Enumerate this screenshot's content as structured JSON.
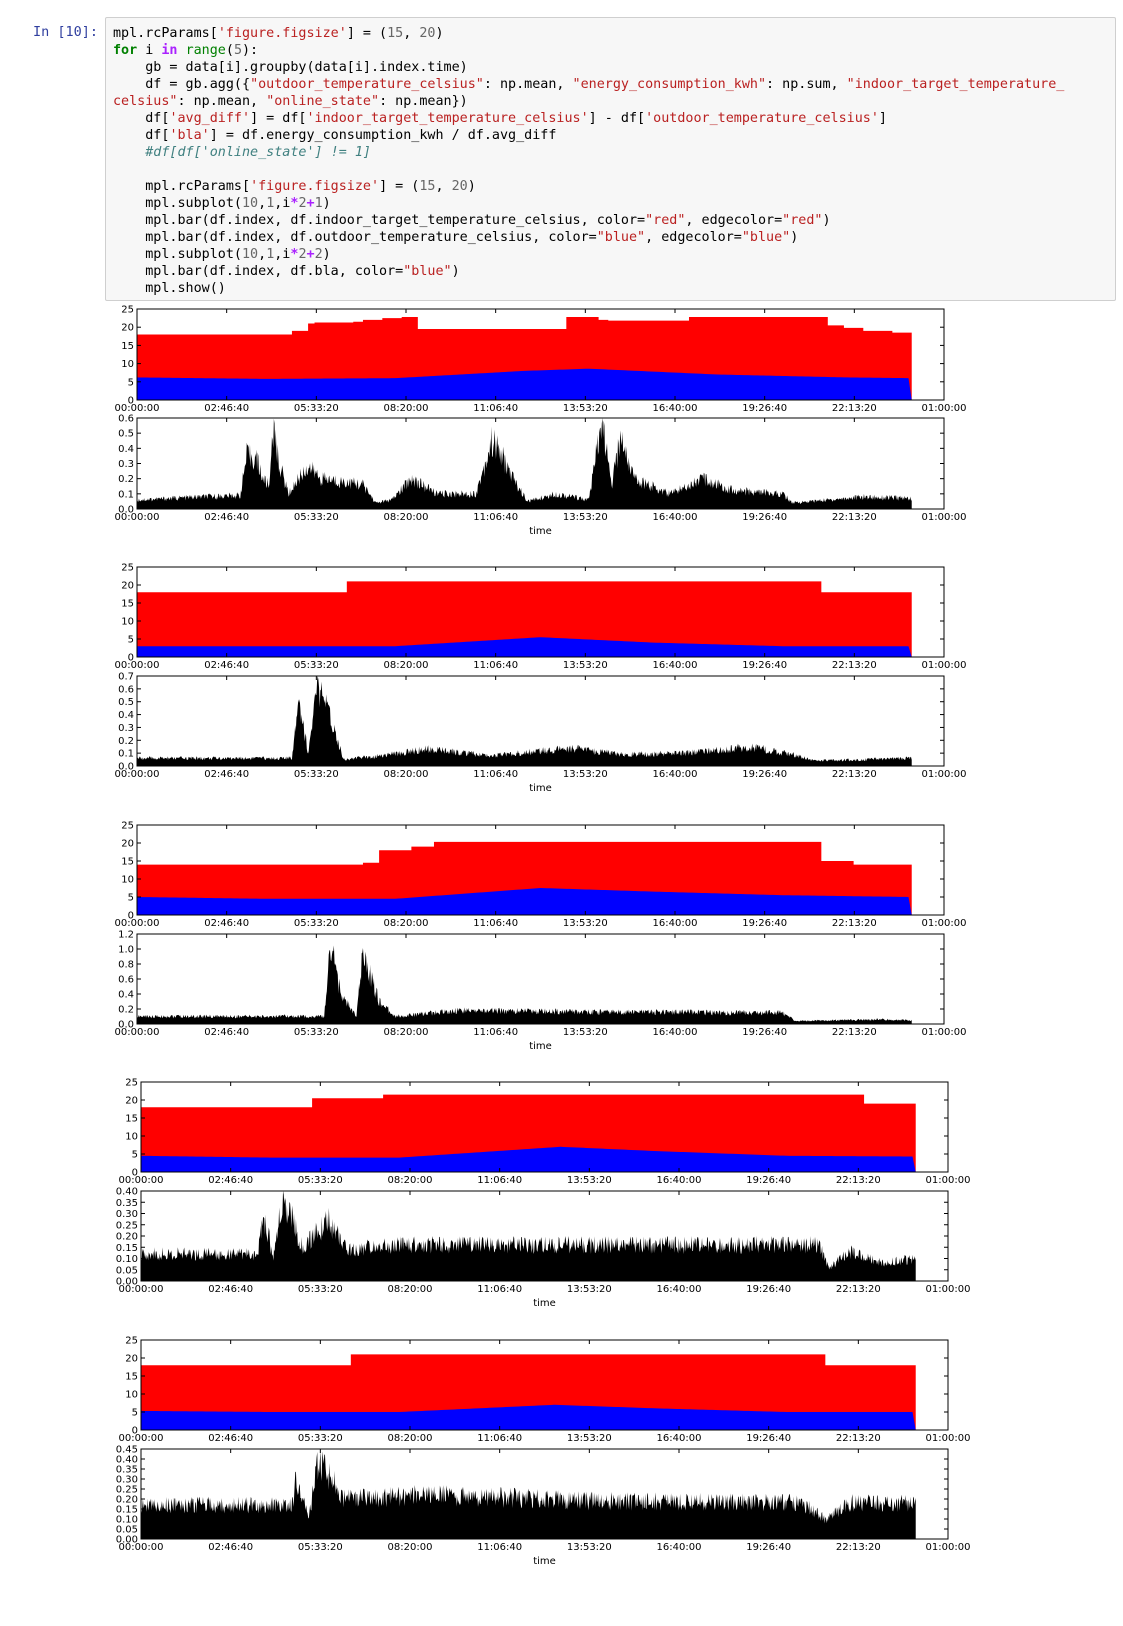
{
  "cell": {
    "prompt": "In [10]:",
    "code_lines": [
      [
        [
          "t",
          "mpl.rcParams["
        ],
        [
          "st",
          "'figure.figsize'"
        ],
        [
          "t",
          "] = ("
        ],
        [
          "num",
          "15"
        ],
        [
          "t",
          ", "
        ],
        [
          "num",
          "20"
        ],
        [
          "t",
          ")"
        ]
      ],
      [
        [
          "kw",
          "for"
        ],
        [
          "t",
          " i "
        ],
        [
          "op",
          "in"
        ],
        [
          "t",
          " "
        ],
        [
          "bi",
          "range"
        ],
        [
          "t",
          "("
        ],
        [
          "num",
          "5"
        ],
        [
          "t",
          "):"
        ]
      ],
      [
        [
          "t",
          "    gb = data[i].groupby(data[i].index.time)"
        ]
      ],
      [
        [
          "t",
          "    df = gb.agg({"
        ],
        [
          "st",
          "\"outdoor_temperature_celsius\""
        ],
        [
          "t",
          ": np.mean, "
        ],
        [
          "st",
          "\"energy_consumption_kwh\""
        ],
        [
          "t",
          ": np.sum, "
        ],
        [
          "st",
          "\"indoor_target_temperature_"
        ]
      ],
      [
        [
          "st",
          "celsius\""
        ],
        [
          "t",
          ": np.mean, "
        ],
        [
          "st",
          "\"online_state\""
        ],
        [
          "t",
          ": np.mean})"
        ]
      ],
      [
        [
          "t",
          "    df["
        ],
        [
          "st",
          "'avg_diff'"
        ],
        [
          "t",
          "] = df["
        ],
        [
          "st",
          "'indoor_target_temperature_celsius'"
        ],
        [
          "t",
          "] - df["
        ],
        [
          "st",
          "'outdoor_temperature_celsius'"
        ],
        [
          "t",
          "]"
        ]
      ],
      [
        [
          "t",
          "    df["
        ],
        [
          "st",
          "'bla'"
        ],
        [
          "t",
          "] = df.energy_consumption_kwh / df.avg_diff"
        ]
      ],
      [
        [
          "cm",
          "    #df[df['online_state'] != 1]"
        ]
      ],
      [
        [
          "t",
          ""
        ]
      ],
      [
        [
          "t",
          "    mpl.rcParams["
        ],
        [
          "st",
          "'figure.figsize'"
        ],
        [
          "t",
          "] = ("
        ],
        [
          "num",
          "15"
        ],
        [
          "t",
          ", "
        ],
        [
          "num",
          "20"
        ],
        [
          "t",
          ")"
        ]
      ],
      [
        [
          "t",
          "    mpl.subplot("
        ],
        [
          "num",
          "10"
        ],
        [
          "t",
          ","
        ],
        [
          "num",
          "1"
        ],
        [
          "t",
          ",i"
        ],
        [
          "op",
          "*"
        ],
        [
          "num",
          "2"
        ],
        [
          "op",
          "+"
        ],
        [
          "num",
          "1"
        ],
        [
          "t",
          ")"
        ]
      ],
      [
        [
          "t",
          "    mpl.bar(df.index, df.indoor_target_temperature_celsius, color="
        ],
        [
          "st",
          "\"red\""
        ],
        [
          "t",
          ", edgecolor="
        ],
        [
          "st",
          "\"red\""
        ],
        [
          "t",
          ")"
        ]
      ],
      [
        [
          "t",
          "    mpl.bar(df.index, df.outdoor_temperature_celsius, color="
        ],
        [
          "st",
          "\"blue\""
        ],
        [
          "t",
          ", edgecolor="
        ],
        [
          "st",
          "\"blue\""
        ],
        [
          "t",
          ")"
        ]
      ],
      [
        [
          "t",
          "    mpl.subplot("
        ],
        [
          "num",
          "10"
        ],
        [
          "t",
          ","
        ],
        [
          "num",
          "1"
        ],
        [
          "t",
          ",i"
        ],
        [
          "op",
          "*"
        ],
        [
          "num",
          "2"
        ],
        [
          "op",
          "+"
        ],
        [
          "num",
          "2"
        ],
        [
          "t",
          ")"
        ]
      ],
      [
        [
          "t",
          "    mpl.bar(df.index, df.bla, color="
        ],
        [
          "st",
          "\"blue\""
        ],
        [
          "t",
          ")"
        ]
      ],
      [
        [
          "t",
          "    mpl.show()"
        ]
      ]
    ]
  },
  "colors": {
    "indoor": "#ff0000",
    "outdoor": "#0000ff",
    "ratio": "#000000"
  },
  "x_tick_labels": [
    "00:00:00",
    "02:46:40",
    "05:33:20",
    "08:20:00",
    "11:06:40",
    "13:53:20",
    "16:40:00",
    "19:26:40",
    "22:13:20",
    "01:00:00"
  ],
  "chart_data": [
    {
      "type": "bar",
      "panel": "temperature",
      "ylim": [
        0,
        25
      ],
      "yticks": [
        "0",
        "5",
        "10",
        "15",
        "20",
        "25"
      ],
      "series": [
        {
          "x": [
            0,
            4.2,
            4.8,
            5.3,
            5.5,
            6.7,
            7.0,
            7.6,
            8.2,
            8.7,
            12.9,
            13.3,
            14.3,
            14.6,
            17.1,
            19.3,
            21.4,
            21.9,
            22.5,
            23.4,
            24.0
          ],
          "indoor": [
            18,
            18,
            19,
            21,
            21.3,
            21.5,
            22.0,
            22.5,
            22.8,
            19.5,
            19.5,
            22.8,
            22.0,
            21.8,
            22.8,
            22.8,
            20.5,
            19.8,
            19,
            18.5,
            18
          ]
        },
        {
          "x": [
            0,
            4,
            8,
            12,
            14,
            18,
            22,
            24
          ],
          "outdoor": [
            6.2,
            5.8,
            6,
            8,
            8.6,
            7,
            6.2,
            6
          ]
        }
      ],
      "xlabel": ""
    },
    {
      "type": "area",
      "panel": "ratio",
      "ylim": [
        0,
        0.6
      ],
      "yticks": [
        "0.0",
        "0.1",
        "0.2",
        "0.3",
        "0.4",
        "0.5",
        "0.6"
      ],
      "values": [
        [
          0,
          0.06
        ],
        [
          2,
          0.08
        ],
        [
          3.2,
          0.09
        ],
        [
          3.4,
          0.35
        ],
        [
          3.7,
          0.33
        ],
        [
          3.9,
          0.2
        ],
        [
          4.1,
          0.15
        ],
        [
          4.2,
          0.55
        ],
        [
          4.4,
          0.3
        ],
        [
          4.7,
          0.1
        ],
        [
          5.0,
          0.2
        ],
        [
          5.3,
          0.28
        ],
        [
          5.7,
          0.2
        ],
        [
          7.0,
          0.16
        ],
        [
          7.4,
          0.04
        ],
        [
          7.9,
          0.06
        ],
        [
          8.5,
          0.2
        ],
        [
          9.3,
          0.1
        ],
        [
          10.5,
          0.1
        ],
        [
          11.0,
          0.45
        ],
        [
          11.3,
          0.35
        ],
        [
          11.7,
          0.18
        ],
        [
          12.1,
          0.05
        ],
        [
          13.0,
          0.1
        ],
        [
          14.0,
          0.06
        ],
        [
          14.4,
          0.58
        ],
        [
          14.7,
          0.15
        ],
        [
          15.0,
          0.48
        ],
        [
          15.4,
          0.2
        ],
        [
          16.5,
          0.1
        ],
        [
          17.5,
          0.2
        ],
        [
          18.5,
          0.12
        ],
        [
          20.0,
          0.1
        ],
        [
          20.3,
          0.04
        ],
        [
          22.5,
          0.08
        ],
        [
          24.0,
          0.07
        ]
      ],
      "xlabel": "time"
    },
    {
      "type": "bar",
      "panel": "temperature",
      "ylim": [
        0,
        25
      ],
      "yticks": [
        "0",
        "5",
        "10",
        "15",
        "20",
        "25"
      ],
      "series": [
        {
          "x": [
            0,
            6.5,
            21.2,
            24.0
          ],
          "indoor": [
            18,
            21,
            18,
            18
          ]
        },
        {
          "x": [
            0,
            4,
            8,
            12.5,
            16,
            20,
            24
          ],
          "outdoor": [
            3,
            3,
            3,
            5.5,
            4,
            3,
            3
          ]
        }
      ],
      "xlabel": ""
    },
    {
      "type": "area",
      "panel": "ratio",
      "ylim": [
        0,
        0.7
      ],
      "yticks": [
        "0.0",
        "0.1",
        "0.2",
        "0.3",
        "0.4",
        "0.5",
        "0.6",
        "0.7"
      ],
      "values": [
        [
          0,
          0.06
        ],
        [
          4.8,
          0.06
        ],
        [
          5.0,
          0.55
        ],
        [
          5.3,
          0.1
        ],
        [
          5.6,
          0.62
        ],
        [
          6.1,
          0.3
        ],
        [
          6.4,
          0.05
        ],
        [
          7.5,
          0.08
        ],
        [
          9,
          0.13
        ],
        [
          11,
          0.08
        ],
        [
          13.5,
          0.14
        ],
        [
          15,
          0.09
        ],
        [
          17,
          0.1
        ],
        [
          19,
          0.15
        ],
        [
          20.5,
          0.08
        ],
        [
          21,
          0.04
        ],
        [
          24,
          0.06
        ]
      ],
      "xlabel": "time"
    },
    {
      "type": "bar",
      "panel": "temperature",
      "ylim": [
        0,
        25
      ],
      "yticks": [
        "0",
        "5",
        "10",
        "15",
        "20",
        "25"
      ],
      "series": [
        {
          "x": [
            0,
            7.0,
            7.5,
            8.5,
            9.2,
            21.2,
            22.2,
            24.0
          ],
          "indoor": [
            14,
            14.5,
            18,
            19,
            20.3,
            15,
            14,
            14
          ]
        },
        {
          "x": [
            0,
            4,
            8,
            12.5,
            16,
            20,
            24
          ],
          "outdoor": [
            5,
            4.5,
            4.5,
            7.5,
            6.5,
            5.5,
            5
          ]
        }
      ],
      "xlabel": ""
    },
    {
      "type": "area",
      "panel": "ratio",
      "ylim": [
        0,
        1.2
      ],
      "yticks": [
        "0.0",
        "0.2",
        "0.4",
        "0.6",
        "0.8",
        "1.0",
        "1.2"
      ],
      "values": [
        [
          0,
          0.1
        ],
        [
          5.8,
          0.1
        ],
        [
          6.0,
          1.1
        ],
        [
          6.3,
          0.4
        ],
        [
          6.8,
          0.1
        ],
        [
          7.0,
          0.95
        ],
        [
          7.5,
          0.3
        ],
        [
          8.0,
          0.1
        ],
        [
          10,
          0.18
        ],
        [
          14,
          0.16
        ],
        [
          20,
          0.15
        ],
        [
          20.4,
          0.04
        ],
        [
          23,
          0.06
        ],
        [
          24,
          0.05
        ]
      ],
      "xlabel": "time"
    },
    {
      "type": "bar",
      "panel": "temperature",
      "ylim": [
        0,
        25
      ],
      "yticks": [
        "0",
        "5",
        "10",
        "15",
        "20",
        "25"
      ],
      "series": [
        {
          "x": [
            0,
            5.3,
            7.5,
            22.4,
            24.0
          ],
          "indoor": [
            18,
            20.5,
            21.5,
            19,
            19
          ]
        },
        {
          "x": [
            0,
            4,
            8,
            13,
            16,
            20,
            24
          ],
          "outdoor": [
            4.5,
            4,
            4,
            7,
            5.8,
            4.5,
            4.3
          ]
        }
      ],
      "xlabel": ""
    },
    {
      "type": "area",
      "panel": "ratio",
      "ylim": [
        0,
        0.4
      ],
      "yticks": [
        "0.00",
        "0.05",
        "0.10",
        "0.15",
        "0.20",
        "0.25",
        "0.30",
        "0.35",
        "0.40"
      ],
      "values": [
        [
          0,
          0.12
        ],
        [
          3.6,
          0.12
        ],
        [
          3.8,
          0.3
        ],
        [
          4.1,
          0.1
        ],
        [
          4.4,
          0.38
        ],
        [
          5.0,
          0.15
        ],
        [
          5.8,
          0.27
        ],
        [
          6.4,
          0.14
        ],
        [
          8,
          0.16
        ],
        [
          14,
          0.16
        ],
        [
          21,
          0.16
        ],
        [
          21.3,
          0.06
        ],
        [
          22,
          0.13
        ],
        [
          23,
          0.08
        ],
        [
          24,
          0.1
        ]
      ],
      "xlabel": "time"
    },
    {
      "type": "bar",
      "panel": "temperature",
      "ylim": [
        0,
        25
      ],
      "yticks": [
        "0",
        "5",
        "10",
        "15",
        "20",
        "25"
      ],
      "series": [
        {
          "x": [
            0,
            6.5,
            21.2,
            24.0
          ],
          "indoor": [
            18,
            21,
            18,
            18
          ]
        },
        {
          "x": [
            0,
            4,
            8,
            12.8,
            16,
            20,
            24
          ],
          "outdoor": [
            5.3,
            5,
            5,
            7,
            6,
            5,
            5
          ]
        }
      ],
      "xlabel": ""
    },
    {
      "type": "area",
      "panel": "ratio",
      "ylim": [
        0,
        0.45
      ],
      "yticks": [
        "0.00",
        "0.05",
        "0.10",
        "0.15",
        "0.20",
        "0.25",
        "0.30",
        "0.35",
        "0.40",
        "0.45"
      ],
      "values": [
        [
          0,
          0.17
        ],
        [
          4.7,
          0.17
        ],
        [
          4.8,
          0.3
        ],
        [
          5.2,
          0.1
        ],
        [
          5.5,
          0.4
        ],
        [
          6.3,
          0.2
        ],
        [
          9,
          0.22
        ],
        [
          14,
          0.19
        ],
        [
          20.5,
          0.18
        ],
        [
          21.2,
          0.1
        ],
        [
          22,
          0.18
        ],
        [
          24,
          0.18
        ]
      ],
      "xlabel": "time"
    }
  ]
}
